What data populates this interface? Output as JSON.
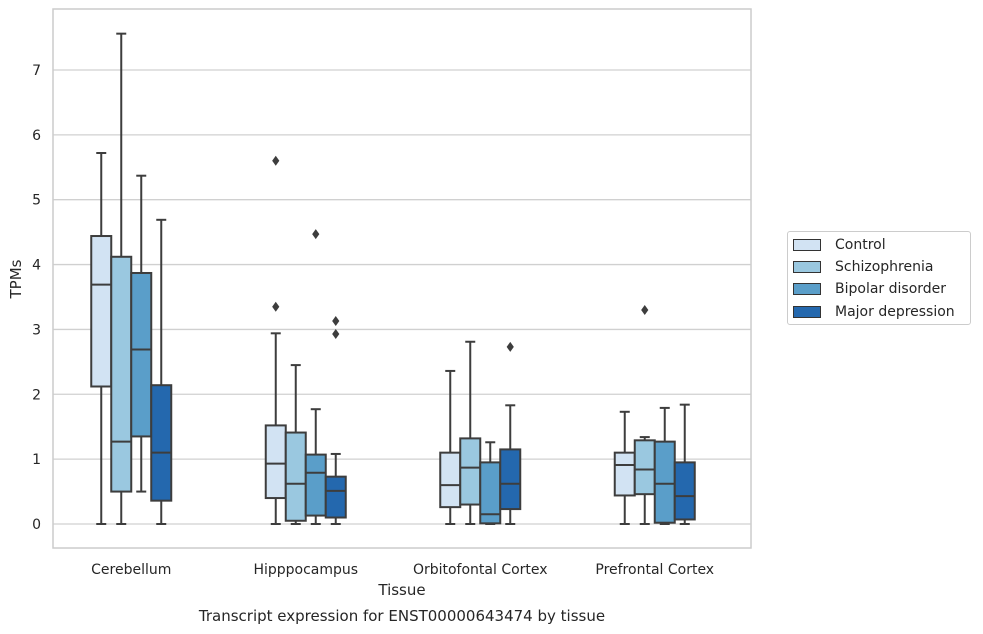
{
  "chart_data": {
    "type": "box",
    "title": "Transcript expression for ENST00000643474 by tissue",
    "xlabel": "Tissue",
    "ylabel": "TPMs",
    "ylim": [
      -0.37,
      7.9
    ],
    "yticks": [
      0,
      1,
      2,
      3,
      4,
      5,
      6,
      7
    ],
    "grid": true,
    "legend_position": "right",
    "categories": [
      "Cerebellum",
      "Hipppocampus",
      "Orbitofontal Cortex",
      "Prefrontal Cortex"
    ],
    "series": [
      {
        "name": "Control",
        "color": "#d2e3f3",
        "boxes": [
          {
            "whislo": 0,
            "q1": 2.12,
            "med": 3.69,
            "q3": 4.44,
            "whishi": 5.72,
            "fliers": []
          },
          {
            "whislo": 0,
            "q1": 0.4,
            "med": 0.93,
            "q3": 1.52,
            "whishi": 2.94,
            "fliers": [
              3.35,
              5.6
            ]
          },
          {
            "whislo": 0,
            "q1": 0.26,
            "med": 0.6,
            "q3": 1.1,
            "whishi": 2.36,
            "fliers": []
          },
          {
            "whislo": 0,
            "q1": 0.44,
            "med": 0.91,
            "q3": 1.1,
            "whishi": 1.73,
            "fliers": []
          }
        ]
      },
      {
        "name": "Schizophrenia",
        "color": "#9ac8e0",
        "boxes": [
          {
            "whislo": 0,
            "q1": 0.5,
            "med": 1.27,
            "q3": 4.12,
            "whishi": 7.56,
            "fliers": []
          },
          {
            "whislo": 0,
            "q1": 0.05,
            "med": 0.62,
            "q3": 1.41,
            "whishi": 2.45,
            "fliers": []
          },
          {
            "whislo": 0,
            "q1": 0.3,
            "med": 0.87,
            "q3": 1.32,
            "whishi": 2.81,
            "fliers": []
          },
          {
            "whislo": 0,
            "q1": 0.46,
            "med": 0.84,
            "q3": 1.29,
            "whishi": 1.34,
            "fliers": [
              3.3
            ]
          }
        ]
      },
      {
        "name": "Bipolar disorder",
        "color": "#5a9ec9",
        "boxes": [
          {
            "whislo": 0.5,
            "q1": 1.35,
            "med": 2.69,
            "q3": 3.87,
            "whishi": 5.37,
            "fliers": []
          },
          {
            "whislo": 0,
            "q1": 0.13,
            "med": 0.79,
            "q3": 1.07,
            "whishi": 1.77,
            "fliers": [
              4.47
            ]
          },
          {
            "whislo": 0,
            "q1": 0.01,
            "med": 0.15,
            "q3": 0.95,
            "whishi": 1.26,
            "fliers": []
          },
          {
            "whislo": 0,
            "q1": 0.02,
            "med": 0.62,
            "q3": 1.27,
            "whishi": 1.79,
            "fliers": []
          }
        ]
      },
      {
        "name": "Major depression",
        "color": "#2468ae",
        "boxes": [
          {
            "whislo": 0,
            "q1": 0.36,
            "med": 1.1,
            "q3": 2.14,
            "whishi": 4.69,
            "fliers": []
          },
          {
            "whislo": 0,
            "q1": 0.1,
            "med": 0.51,
            "q3": 0.73,
            "whishi": 1.08,
            "fliers": [
              2.93,
              3.13
            ]
          },
          {
            "whislo": 0,
            "q1": 0.23,
            "med": 0.62,
            "q3": 1.15,
            "whishi": 1.83,
            "fliers": [
              2.73
            ]
          },
          {
            "whislo": 0,
            "q1": 0.07,
            "med": 0.43,
            "q3": 0.95,
            "whishi": 1.84,
            "fliers": []
          }
        ]
      }
    ]
  }
}
